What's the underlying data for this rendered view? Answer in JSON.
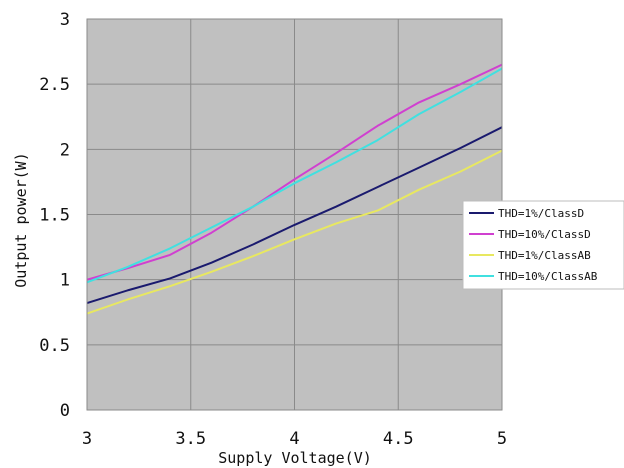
{
  "chart_data": {
    "type": "line",
    "title": "",
    "xlabel": "Supply Voltage(V)",
    "ylabel": "Output power(W)",
    "xlim": [
      3,
      5
    ],
    "ylim": [
      0,
      3
    ],
    "x_ticks": [
      "3",
      "3.5",
      "4",
      "4.5",
      "5"
    ],
    "y_ticks": [
      "0",
      "0.5",
      "1",
      "1.5",
      "2",
      "2.5",
      "3"
    ],
    "grid": true,
    "plot_background": "#c0c0c0",
    "legend_position": "right",
    "series": [
      {
        "name": "THD=1%/ClassD",
        "color": "#1a1a6e",
        "x": [
          3.0,
          3.2,
          3.4,
          3.6,
          3.8,
          4.0,
          4.2,
          4.4,
          4.6,
          4.8,
          5.0
        ],
        "y": [
          0.82,
          0.92,
          1.01,
          1.13,
          1.27,
          1.42,
          1.56,
          1.71,
          1.86,
          2.01,
          2.17
        ]
      },
      {
        "name": "THD=10%/ClassD",
        "color": "#d040d0",
        "x": [
          3.0,
          3.2,
          3.4,
          3.6,
          3.8,
          4.0,
          4.2,
          4.4,
          4.6,
          4.8,
          5.0
        ],
        "y": [
          1.0,
          1.09,
          1.19,
          1.36,
          1.56,
          1.77,
          1.97,
          2.18,
          2.36,
          2.5,
          2.65
        ]
      },
      {
        "name": "THD=1%/ClassAB",
        "color": "#e8e860",
        "x": [
          3.0,
          3.2,
          3.4,
          3.6,
          3.8,
          4.0,
          4.2,
          4.4,
          4.6,
          4.8,
          5.0
        ],
        "y": [
          0.74,
          0.85,
          0.95,
          1.06,
          1.18,
          1.31,
          1.43,
          1.53,
          1.69,
          1.83,
          1.99
        ]
      },
      {
        "name": "THD=10%/ClassAB",
        "color": "#40e0e0",
        "x": [
          3.0,
          3.2,
          3.4,
          3.6,
          3.8,
          4.0,
          4.2,
          4.4,
          4.6,
          4.8,
          5.0
        ],
        "y": [
          0.98,
          1.1,
          1.24,
          1.4,
          1.56,
          1.74,
          1.9,
          2.07,
          2.27,
          2.44,
          2.62
        ]
      }
    ]
  }
}
